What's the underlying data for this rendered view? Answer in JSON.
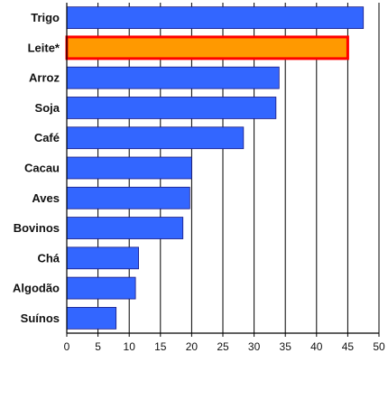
{
  "chart_data": {
    "type": "bar",
    "orientation": "horizontal",
    "categories": [
      "Trigo",
      "Leite*",
      "Arroz",
      "Soja",
      "Café",
      "Cacau",
      "Aves",
      "Bovinos",
      "Chá",
      "Algodão",
      "Suínos"
    ],
    "values": [
      47.5,
      45,
      34,
      33.5,
      28.3,
      20,
      19.7,
      18.6,
      11.5,
      11,
      7.9
    ],
    "highlight_category": "Leite*",
    "xlim": [
      0,
      50
    ],
    "xticks": [
      "0",
      "5",
      "10",
      "15",
      "20",
      "25",
      "30",
      "35",
      "40",
      "45",
      "50"
    ],
    "grid": "vertical",
    "legend": "none",
    "colors": {
      "bar": "#3366ff",
      "highlight_fill": "#ff9900",
      "highlight_border": "#ff0000",
      "grid": "#000000"
    }
  }
}
